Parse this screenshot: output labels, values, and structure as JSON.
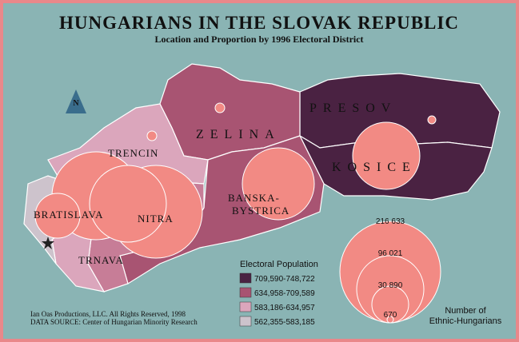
{
  "header": {
    "title": "HUNGARIANS IN THE SLOVAK REPUBLIC",
    "subtitle": "Location and Proportion by 1996 Electoral District"
  },
  "regions": [
    {
      "label": [
        "BRATISLAVA"
      ]
    },
    {
      "label": [
        "TRNAVA"
      ]
    },
    {
      "label": [
        "NITRA"
      ]
    },
    {
      "label": [
        "TRENCIN"
      ]
    },
    {
      "label": [
        "ZELINA"
      ]
    },
    {
      "label": [
        "BANSKA-",
        "BYSTRICA"
      ]
    },
    {
      "label": [
        "PRESOV"
      ]
    },
    {
      "label": [
        "KOSICE"
      ]
    }
  ],
  "north": "N",
  "legend": {
    "title": "Electoral Population",
    "entries": [
      "709,590-748,722",
      "634,958-709,589",
      "583,186-634,957",
      "562,355-583,185"
    ]
  },
  "circle_legend": {
    "values": [
      "216 633",
      "96 021",
      "30 890",
      "670"
    ],
    "title": [
      "Number of",
      "Ethnic-Hungarians"
    ]
  },
  "credits": [
    "Ian Oas Productions, LLC. All Rights Reserved, 1998",
    "DATA SOURCE: Center of Hungarian Minority Research"
  ]
}
